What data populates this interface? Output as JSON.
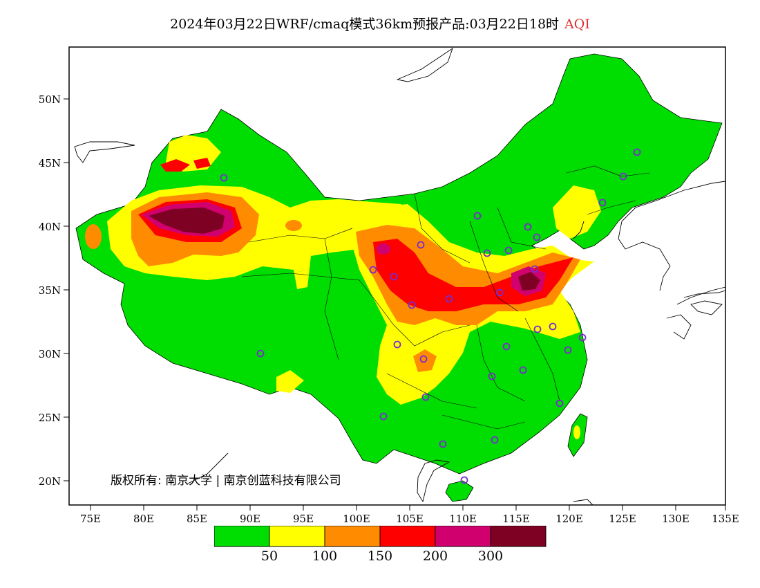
{
  "title": "2024年03月22日WRF/cmaq模式36km预报产品:03月22日18时",
  "title_tag": "AQI",
  "copyright": "版权所有: 南京大学 | 南京创蓝科技有限公司",
  "axes": {
    "lat_ticks": [
      "50N",
      "45N",
      "40N",
      "35N",
      "30N",
      "25N",
      "20N"
    ],
    "lon_ticks": [
      "75E",
      "80E",
      "85E",
      "90E",
      "95E",
      "100E",
      "105E",
      "110E",
      "115E",
      "120E",
      "125E",
      "130E",
      "135E"
    ]
  },
  "legend": {
    "colors": [
      "#00dd00",
      "#ffff00",
      "#ff8c00",
      "#ff0000",
      "#d0006f",
      "#7e0023"
    ],
    "labels": [
      "50",
      "100",
      "150",
      "200",
      "300"
    ]
  },
  "colors": {
    "good": "#00dd00",
    "moderate": "#ffff00",
    "unhealthy_sensitive": "#ff8c00",
    "unhealthy": "#ff0000",
    "very_unhealthy": "#d0006f",
    "hazardous": "#7e0023",
    "station_marker": "#7a2cd0"
  }
}
